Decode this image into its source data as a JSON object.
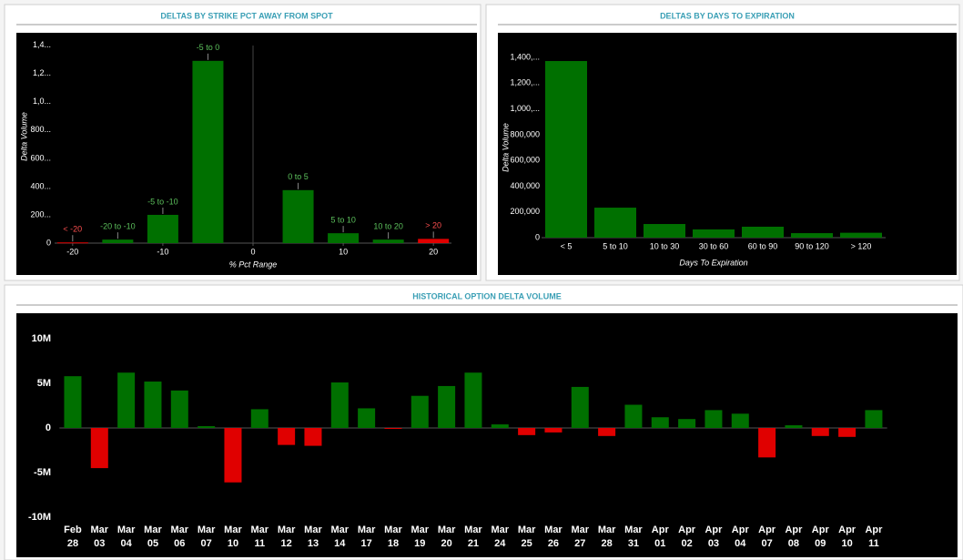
{
  "chart_data": [
    {
      "type": "bar",
      "title": "DELTAS BY STRIKE PCT AWAY FROM SPOT",
      "y_label": "Delta Volume",
      "x_label": "% Pct Range",
      "x": [
        -20,
        -15,
        -10,
        -5,
        5,
        10,
        15,
        20
      ],
      "labels": [
        "< -20",
        "-20 to -10",
        "-5 to -10",
        "-5 to 0",
        "0 to 5",
        "5 to 10",
        "10 to 20",
        "> 20"
      ],
      "values": [
        5000,
        25000,
        200000,
        1290000,
        375000,
        70000,
        25000,
        30000
      ],
      "colors": [
        "#e00000",
        "#007000",
        "#007000",
        "#007000",
        "#007000",
        "#007000",
        "#007000",
        "#e00000"
      ],
      "label_colors": [
        "#ff5050",
        "#5cc05c",
        "#5cc05c",
        "#5cc05c",
        "#5cc05c",
        "#5cc05c",
        "#5cc05c",
        "#ff5050"
      ],
      "xlim": [
        -22,
        22
      ],
      "xticks": [
        -20,
        -10,
        0,
        10,
        20
      ],
      "ylim": [
        0,
        1450000
      ],
      "yticks": [
        0,
        {
          "value": 200000,
          "label": "200..."
        },
        {
          "value": 400000,
          "label": "400..."
        },
        {
          "value": 600000,
          "label": "600..."
        },
        {
          "value": 800000,
          "label": "800..."
        },
        {
          "value": 1000000,
          "label": "1,0..."
        },
        {
          "value": 1200000,
          "label": "1,2..."
        },
        {
          "value": 1400000,
          "label": "1,4..."
        }
      ]
    },
    {
      "type": "bar",
      "title": "DELTAS BY DAYS TO EXPIRATION",
      "y_label": "Delta Volume",
      "x_label": "Days To Expiration",
      "categories": [
        "< 5",
        "5 to 10",
        "10 to 30",
        "30 to 60",
        "60 to 90",
        "90 to 120",
        "> 120"
      ],
      "values": [
        1372000,
        233000,
        106000,
        64000,
        85000,
        35000,
        38000
      ],
      "color": "#007000",
      "ylim": [
        0,
        1450000
      ],
      "yticks": [
        0,
        {
          "value": 200000,
          "label": "200,000"
        },
        {
          "value": 400000,
          "label": "400,000"
        },
        {
          "value": 600000,
          "label": "600,000"
        },
        {
          "value": 800000,
          "label": "800,000"
        },
        {
          "value": 1000000,
          "label": "1,000,..."
        },
        {
          "value": 1200000,
          "label": "1,200,..."
        },
        {
          "value": 1400000,
          "label": "1,400,..."
        }
      ]
    },
    {
      "type": "bar",
      "title": "HISTORICAL OPTION DELTA VOLUME",
      "categories": [
        "Feb 28",
        "Mar 03",
        "Mar 04",
        "Mar 05",
        "Mar 06",
        "Mar 07",
        "Mar 10",
        "Mar 11",
        "Mar 12",
        "Mar 13",
        "Mar 14",
        "Mar 17",
        "Mar 18",
        "Mar 19",
        "Mar 20",
        "Mar 21",
        "Mar 24",
        "Mar 25",
        "Mar 26",
        "Mar 27",
        "Mar 28",
        "Mar 31",
        "Apr 01",
        "Apr 02",
        "Apr 03",
        "Apr 04",
        "Apr 07",
        "Apr 08",
        "Apr 09",
        "Apr 10",
        "Apr 11"
      ],
      "values": [
        5800000,
        -4500000,
        6200000,
        5200000,
        4200000,
        200000,
        -6100000,
        2100000,
        -1900000,
        -2000000,
        5100000,
        2200000,
        -100000,
        3600000,
        4700000,
        6200000,
        400000,
        -800000,
        -500000,
        4600000,
        -900000,
        2600000,
        1200000,
        1000000,
        2000000,
        1600000,
        -3300000,
        300000,
        -900000,
        -1000000,
        2000000
      ],
      "color": "#007000",
      "negative_color": "#e00000",
      "ylim": [
        -10000000,
        10000000
      ],
      "yticks": [
        {
          "value": -10000000,
          "label": "-10M"
        },
        {
          "value": -5000000,
          "label": "-5M"
        },
        0,
        {
          "value": 5000000,
          "label": "5M"
        },
        {
          "value": 10000000,
          "label": "10M"
        }
      ]
    }
  ]
}
